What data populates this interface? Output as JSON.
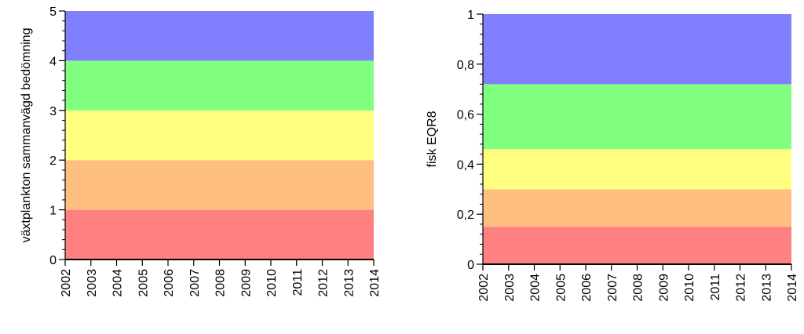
{
  "chart_data": [
    {
      "type": "area",
      "ylabel": "växtplankton sammanvägd bedömning",
      "xlabel": "",
      "x_ticks": [
        "2002",
        "2003",
        "2004",
        "2005",
        "2006",
        "2007",
        "2008",
        "2009",
        "2010",
        "2011",
        "2012",
        "2013",
        "2014"
      ],
      "xlim": [
        2002,
        2014
      ],
      "ylim": [
        0,
        5
      ],
      "y_ticks": [
        "0",
        "1",
        "2",
        "3",
        "4",
        "5"
      ],
      "y_tick_values": [
        0,
        1,
        2,
        3,
        4,
        5
      ],
      "bands": [
        {
          "from": 0,
          "to": 1,
          "color": "#ff8080"
        },
        {
          "from": 1,
          "to": 2,
          "color": "#ffbf80"
        },
        {
          "from": 2,
          "to": 3,
          "color": "#ffff80"
        },
        {
          "from": 3,
          "to": 4,
          "color": "#80ff80"
        },
        {
          "from": 4,
          "to": 5,
          "color": "#8080ff"
        }
      ]
    },
    {
      "type": "area",
      "ylabel": "fisk EQR8",
      "xlabel": "",
      "x_ticks": [
        "2002",
        "2003",
        "2004",
        "2005",
        "2006",
        "2007",
        "2008",
        "2009",
        "2010",
        "2011",
        "2012",
        "2013",
        "2014"
      ],
      "xlim": [
        2002,
        2014
      ],
      "ylim": [
        0,
        1
      ],
      "y_ticks": [
        "0",
        "0,2",
        "0,4",
        "0,6",
        "0,8",
        "1"
      ],
      "y_tick_values": [
        0,
        0.2,
        0.4,
        0.6,
        0.8,
        1
      ],
      "bands": [
        {
          "from": 0,
          "to": 0.15,
          "color": "#ff8080"
        },
        {
          "from": 0.15,
          "to": 0.3,
          "color": "#ffbf80"
        },
        {
          "from": 0.3,
          "to": 0.46,
          "color": "#ffff80"
        },
        {
          "from": 0.46,
          "to": 0.72,
          "color": "#80ff80"
        },
        {
          "from": 0.72,
          "to": 1,
          "color": "#8080ff"
        }
      ]
    }
  ]
}
